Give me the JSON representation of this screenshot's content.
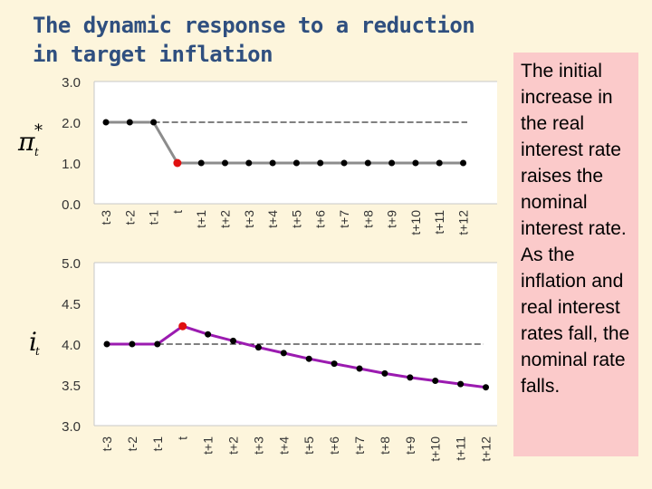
{
  "title": "The dynamic response to a reduction in target inflation",
  "note": "The initial increase in the real interest rate raises the nominal interest rate. As the inflation and real interest rates fall, the nominal rate falls.",
  "colors": {
    "background": "#fdf5dc",
    "note_background": "#fbcaca",
    "title": "#2f4f7f",
    "top_series": "#8c8c8c",
    "bottom_series": "#9b1bb0",
    "marker": "#000000",
    "highlight_marker": "#e01010"
  },
  "chart_data": [
    {
      "type": "line",
      "ylabel": "π*t",
      "categories": [
        "t-3",
        "t-2",
        "t-1",
        "t",
        "t+1",
        "t+2",
        "t+3",
        "t+4",
        "t+5",
        "t+6",
        "t+7",
        "t+8",
        "t+9",
        "t+10",
        "t+11",
        "t+12"
      ],
      "series": [
        {
          "values": [
            2.0,
            2.0,
            2.0,
            1.0,
            1.0,
            1.0,
            1.0,
            1.0,
            1.0,
            1.0,
            1.0,
            1.0,
            1.0,
            1.0,
            1.0,
            1.0
          ]
        }
      ],
      "reference_line": 2.0,
      "highlight_index": 3,
      "yticks": [
        "3.0",
        "2.0",
        "1.0",
        "0.0"
      ],
      "ylim": [
        0,
        3
      ],
      "grid": false
    },
    {
      "type": "line",
      "ylabel": "it",
      "categories": [
        "t-3",
        "t-2",
        "t-1",
        "t",
        "t+1",
        "t+2",
        "t+3",
        "t+4",
        "t+5",
        "t+6",
        "t+7",
        "t+8",
        "t+9",
        "t+10",
        "t+11",
        "t+12"
      ],
      "series": [
        {
          "values": [
            4.0,
            4.0,
            4.0,
            4.22,
            4.12,
            4.04,
            3.96,
            3.89,
            3.82,
            3.76,
            3.7,
            3.64,
            3.59,
            3.55,
            3.51,
            3.47
          ]
        }
      ],
      "reference_line": 4.0,
      "highlight_index": 3,
      "yticks": [
        "5.0",
        "4.5",
        "4.0",
        "3.5",
        "3.0"
      ],
      "ylim": [
        3,
        5
      ],
      "grid": false
    }
  ]
}
